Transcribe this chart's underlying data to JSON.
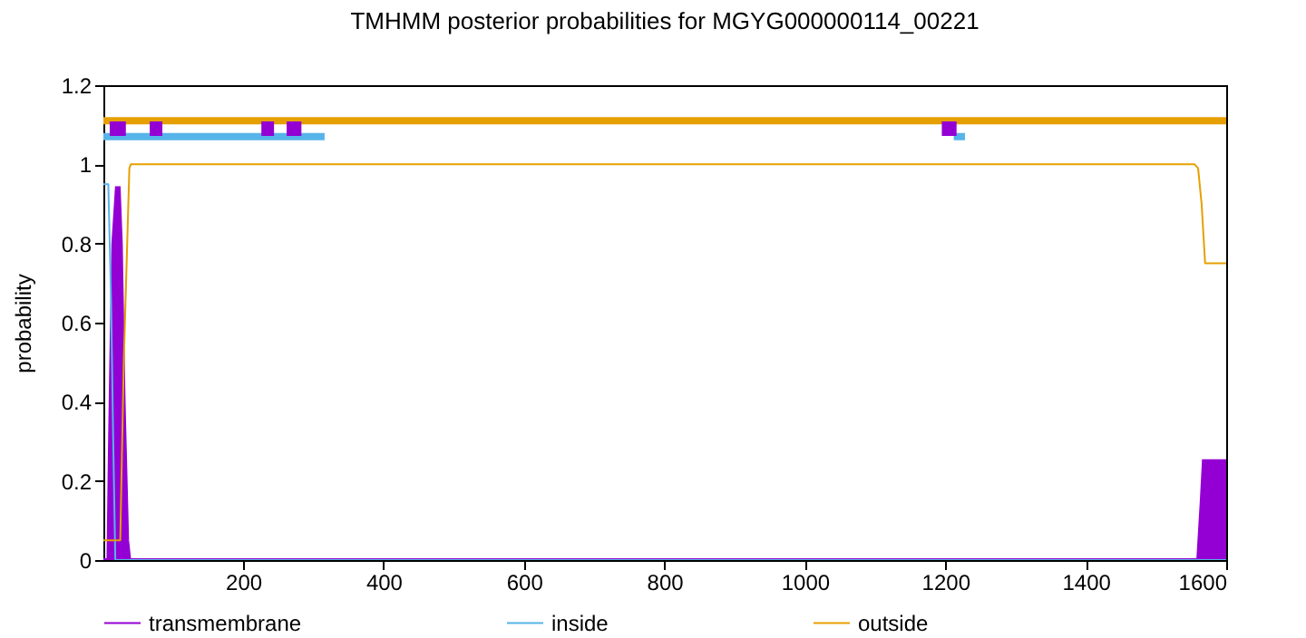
{
  "chart_data": {
    "type": "line",
    "title": "TMHMM posterior probabilities for MGYG000000114_00221",
    "ylabel": "probability",
    "xlim": [
      1,
      1600
    ],
    "xticks": [
      200,
      400,
      600,
      800,
      1000,
      1200,
      1400,
      1600
    ],
    "ylim": [
      0,
      1.2
    ],
    "yticks": [
      0,
      0.2,
      0.4,
      0.6,
      0.8,
      1,
      1.2
    ],
    "grid": false,
    "legend": "bottom",
    "series": [
      {
        "name": "transmembrane",
        "type": "area",
        "color": "#9400d3",
        "x": [
          1,
          8,
          10,
          12,
          15,
          20,
          23,
          26,
          30,
          35,
          38,
          1555,
          1560,
          1565,
          1568,
          1595,
          1600
        ],
        "values": [
          0,
          0,
          0.27,
          0.5,
          0.8,
          0.94,
          0.94,
          0.8,
          0.4,
          0.05,
          0,
          0,
          0,
          0.15,
          0.25,
          0.25,
          0.25
        ]
      },
      {
        "name": "inside",
        "color": "#56b4e9",
        "x": [
          1,
          8,
          12,
          15,
          18,
          1600
        ],
        "values": [
          0.95,
          0.95,
          0.65,
          0.3,
          0,
          0
        ]
      },
      {
        "name": "outside",
        "color": "#e69f00",
        "x": [
          1,
          25,
          30,
          38,
          40,
          1555,
          1560,
          1565,
          1570,
          1600
        ],
        "values": [
          0.05,
          0.05,
          0.5,
          0.99,
          1,
          1,
          0.99,
          0.9,
          0.75,
          0.75
        ]
      },
      {
        "color": "#e69f00",
        "x": [
          1,
          1600
        ],
        "values": [
          1.11,
          1.11
        ]
      },
      {
        "color": "#56b4e9",
        "x": [
          1,
          316,
          317,
          1212,
          1228
        ],
        "values": [
          1.07,
          1.07,
          null,
          1.07,
          1.07
        ]
      },
      {
        "color": "#9400d3",
        "x": [
          10,
          33,
          34,
          67,
          85,
          86,
          226,
          244,
          245,
          262,
          283,
          284,
          1195,
          1216
        ],
        "values": [
          1.09,
          1.09,
          null,
          1.09,
          1.09,
          null,
          1.09,
          1.09,
          null,
          1.09,
          1.09,
          null,
          1.09,
          1.09
        ]
      }
    ]
  }
}
